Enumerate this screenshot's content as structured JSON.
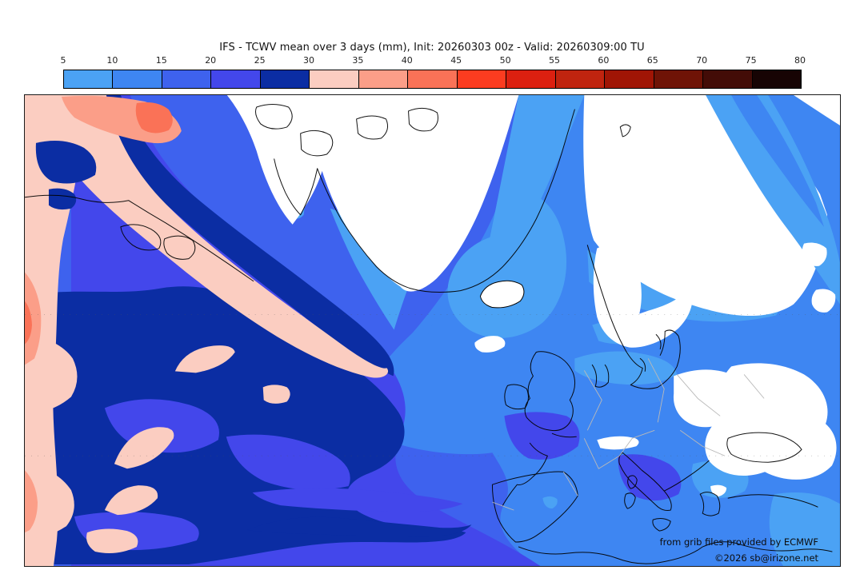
{
  "header": {
    "title": "IFS - TCWV mean over 3 days (mm), Init: 20260303 00z - Valid: 20260309:00 TU"
  },
  "colorbar": {
    "unit": "mm",
    "tick_labels": [
      "5",
      "10",
      "15",
      "20",
      "25",
      "30",
      "35",
      "40",
      "45",
      "50",
      "55",
      "60",
      "65",
      "70",
      "75",
      "80"
    ],
    "cells": [
      {
        "range": "5-10",
        "color": "#4BA2F4"
      },
      {
        "range": "10-15",
        "color": "#3E86F2"
      },
      {
        "range": "15-20",
        "color": "#3E62EE"
      },
      {
        "range": "20-25",
        "color": "#4347EB"
      },
      {
        "range": "25-30",
        "color": "#0B2DA3"
      },
      {
        "range": "30-35",
        "color": "#FBCDC1"
      },
      {
        "range": "35-40",
        "color": "#FB9E88"
      },
      {
        "range": "40-45",
        "color": "#FA7257"
      },
      {
        "range": "45-50",
        "color": "#FB3C20"
      },
      {
        "range": "50-55",
        "color": "#DC2010"
      },
      {
        "range": "55-60",
        "color": "#C0240F"
      },
      {
        "range": "60-65",
        "color": "#A01505"
      },
      {
        "range": "65-70",
        "color": "#6F1306"
      },
      {
        "range": "70-75",
        "color": "#430C07"
      },
      {
        "range": "75-80",
        "color": "#170404"
      }
    ]
  },
  "map": {
    "attribution": [
      "from grib files provided by ECMWF",
      "©2026 sb@irizone.net"
    ],
    "values_shown_range_mm": "below 5 (white) to about 45"
  }
}
